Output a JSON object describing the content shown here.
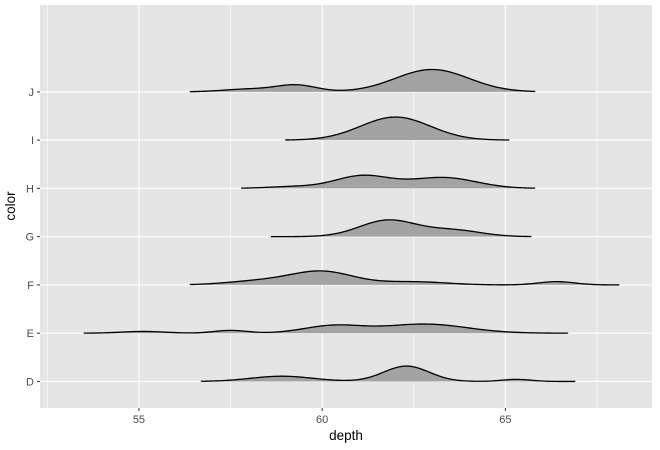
{
  "chart_data": {
    "type": "ridgeline",
    "xlabel": "depth",
    "ylabel": "color",
    "xlim": [
      52.3,
      69.0
    ],
    "x_ticks": [
      55,
      60,
      65
    ],
    "x_minor_ticks": [
      52.5,
      57.5,
      62.5,
      67.5
    ],
    "grid": true,
    "background": "#e5e5e5",
    "grid_color": "#ffffff",
    "fill_color": "#a3a3a3",
    "line_color": "#000000",
    "ridge_height_scale": 1.45,
    "categories": [
      "D",
      "E",
      "F",
      "G",
      "H",
      "I",
      "J"
    ],
    "series": [
      {
        "name": "D",
        "range": [
          56.7,
          66.9
        ],
        "components": [
          [
            58.9,
            0.85,
            0.075
          ],
          [
            62.3,
            0.62,
            0.22
          ],
          [
            65.3,
            0.4,
            0.03
          ]
        ]
      },
      {
        "name": "E",
        "range": [
          53.5,
          66.7
        ],
        "components": [
          [
            55.1,
            0.6,
            0.025
          ],
          [
            57.5,
            0.45,
            0.04
          ],
          [
            60.3,
            0.8,
            0.105
          ],
          [
            62.8,
            1.15,
            0.13
          ]
        ]
      },
      {
        "name": "F",
        "range": [
          56.4,
          68.1
        ],
        "components": [
          [
            58.3,
            0.9,
            0.055
          ],
          [
            60.0,
            0.85,
            0.19
          ],
          [
            62.5,
            0.9,
            0.045
          ],
          [
            66.4,
            0.5,
            0.047
          ]
        ]
      },
      {
        "name": "G",
        "range": [
          58.6,
          65.7
        ],
        "components": [
          [
            61.8,
            0.78,
            0.235
          ],
          [
            63.6,
            0.75,
            0.09
          ]
        ]
      },
      {
        "name": "H",
        "range": [
          57.8,
          65.8
        ],
        "components": [
          [
            59.2,
            0.7,
            0.025
          ],
          [
            61.1,
            0.75,
            0.18
          ],
          [
            63.3,
            0.9,
            0.155
          ]
        ]
      },
      {
        "name": "I",
        "range": [
          59.0,
          65.1
        ],
        "components": [
          [
            62.0,
            0.95,
            0.33
          ]
        ]
      },
      {
        "name": "J",
        "range": [
          56.4,
          65.8
        ],
        "components": [
          [
            58.0,
            0.7,
            0.04
          ],
          [
            59.3,
            0.55,
            0.095
          ],
          [
            63.0,
            1.0,
            0.32
          ]
        ]
      }
    ]
  }
}
